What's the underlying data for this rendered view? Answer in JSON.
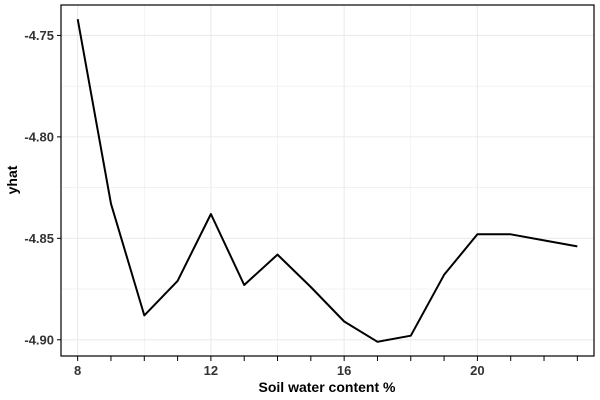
{
  "chart_data": {
    "type": "line",
    "title": "",
    "xlabel": "Soil water content %",
    "ylabel": "yhat",
    "x": [
      8,
      9,
      10,
      11,
      12,
      13,
      14,
      15,
      16,
      17,
      18,
      19,
      20,
      21,
      22,
      23
    ],
    "y": [
      -4.742,
      -4.833,
      -4.888,
      -4.871,
      -4.838,
      -4.873,
      -4.858,
      -4.874,
      -4.891,
      -4.901,
      -4.898,
      -4.868,
      -4.848,
      -4.848,
      -4.851,
      -4.854
    ],
    "xlim": [
      7.5,
      23.5
    ],
    "ylim": [
      -4.908,
      -4.735
    ],
    "xticks": [
      8,
      12,
      16,
      20
    ],
    "xtick_labels": [
      "8",
      "12",
      "16",
      "20"
    ],
    "xticks_minor": [
      8,
      9,
      10,
      11,
      12,
      13,
      14,
      15,
      16,
      17,
      18,
      19,
      20,
      21,
      22,
      23
    ],
    "yticks": [
      -4.75,
      -4.8,
      -4.85,
      -4.9
    ],
    "ytick_labels": [
      "-4.75",
      "-4.80",
      "-4.85",
      "-4.90"
    ],
    "grid": true,
    "line_color": "#000000",
    "grid_color": "#ebebeb"
  }
}
